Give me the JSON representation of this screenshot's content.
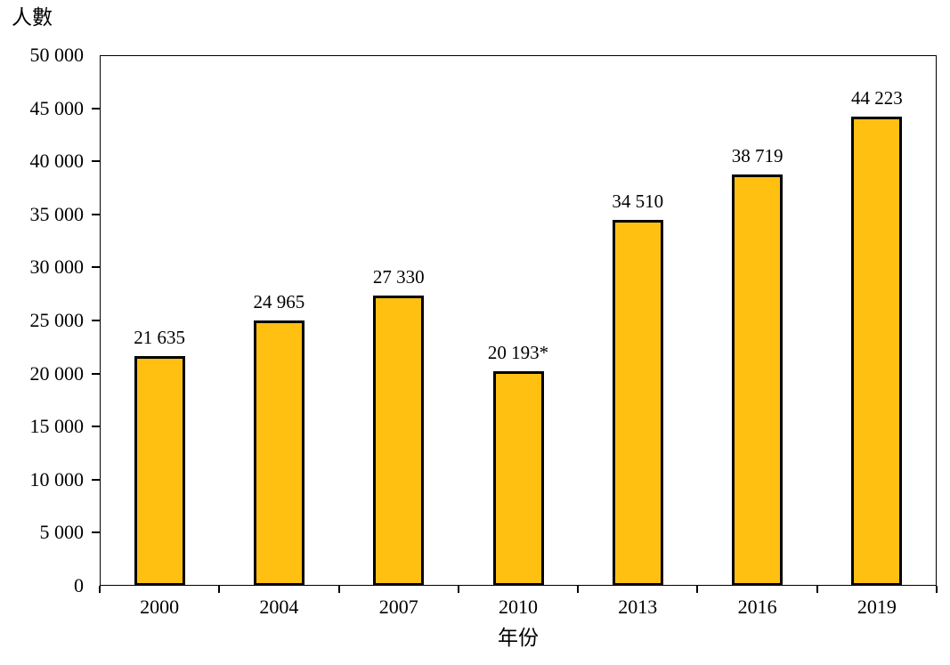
{
  "chart_data": {
    "type": "bar",
    "title": "",
    "ylabel": "人數",
    "xlabel": "年份",
    "categories": [
      "2000",
      "2004",
      "2007",
      "2010",
      "2013",
      "2016",
      "2019"
    ],
    "values": [
      21635,
      24965,
      27330,
      20193,
      34510,
      38719,
      44223
    ],
    "value_labels": [
      "21 635",
      "24 965",
      "27 330",
      "20 193*",
      "34 510",
      "38 719",
      "44 223"
    ],
    "ylim": [
      0,
      50000
    ],
    "ytick_step": 5000,
    "ytick_labels": [
      "0",
      "5 000",
      "10 000",
      "15 000",
      "20 000",
      "25 000",
      "30 000",
      "35 000",
      "40 000",
      "45 000",
      "50 000"
    ],
    "grid": false,
    "legend": null,
    "bar_color": "#FFC011",
    "bar_border_color": "#000000",
    "axis_color": "#000000"
  }
}
